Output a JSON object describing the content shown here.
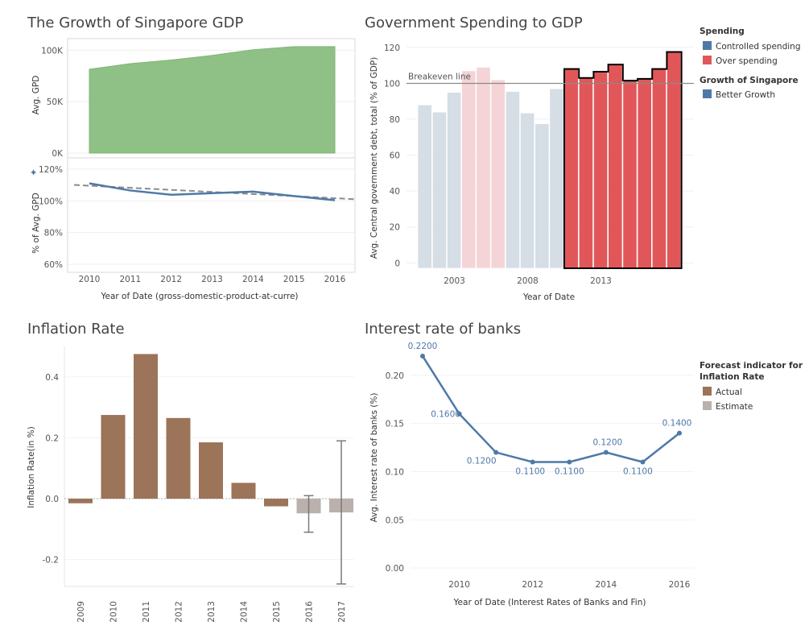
{
  "chart_data": [
    {
      "id": "gdp",
      "type": "area",
      "title": "The Growth of Singapore GDP",
      "x": [
        2010,
        2011,
        2012,
        2013,
        2014,
        2015,
        2016
      ],
      "xlabel": "Year of Date (gross-domestic-product-at-curre)",
      "top_panel": {
        "ylabel": "Avg. GPD",
        "values": [
          81500,
          87000,
          90500,
          95000,
          100500,
          103500,
          103500
        ],
        "ylim": [
          0,
          105000
        ],
        "yticks": [
          0,
          50000,
          100000
        ],
        "ytick_labels": [
          "0K",
          "50K",
          "100K"
        ],
        "color": "#8fc187"
      },
      "bottom_panel": {
        "ylabel": "% of Avg. GPD",
        "values": [
          111,
          106.5,
          103.8,
          104.8,
          105.8,
          103,
          100.4
        ],
        "trend": [
          110,
          101
        ],
        "ylim": [
          58,
          125
        ],
        "yticks": [
          60,
          80,
          100,
          120
        ],
        "ytick_labels": [
          "60%",
          "80%",
          "100%",
          "120%"
        ],
        "color": "#4e79a7"
      }
    },
    {
      "id": "spending",
      "type": "bar",
      "title": "Government Spending to GDP",
      "x": [
        2001,
        2002,
        2003,
        2004,
        2005,
        2006,
        2007,
        2008,
        2009,
        2010,
        2011,
        2012,
        2013,
        2014,
        2015,
        2016,
        2017,
        2018
      ],
      "values": [
        88,
        84,
        95,
        107,
        109,
        102,
        95.5,
        83.5,
        77.5,
        97,
        108,
        103,
        106.5,
        110.5,
        101.5,
        102.5,
        108,
        117.5
      ],
      "highlight": [
        false,
        false,
        false,
        false,
        false,
        false,
        false,
        false,
        false,
        false,
        true,
        true,
        true,
        true,
        true,
        true,
        true,
        true
      ],
      "ylim": [
        -3,
        124
      ],
      "yticks": [
        0,
        20,
        40,
        60,
        80,
        100,
        120
      ],
      "xticks": [
        2003,
        2008,
        2013
      ],
      "xlabel": "Year of Date",
      "ylabel": "Avg. Central government debt, total (% of GDP)",
      "reference_line": {
        "value": 100,
        "label": "Breakeven line"
      },
      "colors": {
        "controlled_faded": "#d5dde5",
        "over_faded": "#f4d4d6",
        "over": "#e15759",
        "outline": "#000000"
      }
    },
    {
      "id": "inflation",
      "type": "bar",
      "title": "Inflation Rate",
      "categories": [
        "2009",
        "2010",
        "2011",
        "2012",
        "2013",
        "2014",
        "2015",
        "2016",
        "2017"
      ],
      "values": [
        -0.015,
        0.275,
        0.475,
        0.265,
        0.185,
        0.052,
        -0.025,
        -0.048,
        -0.045
      ],
      "kind": [
        "Actual",
        "Actual",
        "Actual",
        "Actual",
        "Actual",
        "Actual",
        "Actual",
        "Estimate",
        "Estimate"
      ],
      "error_bars": [
        null,
        null,
        null,
        null,
        null,
        null,
        null,
        [
          -0.11,
          0.01
        ],
        [
          -0.28,
          0.19
        ]
      ],
      "ylim": [
        -0.32,
        0.5
      ],
      "yticks": [
        -0.2,
        0.0,
        0.2,
        0.4
      ],
      "ytick_labels": [
        "-0.2",
        "0.0",
        "0.2",
        "0.4"
      ],
      "ylabel": "Inflation Rate(in %)",
      "colors": {
        "Actual": "#9c7459",
        "Estimate": "#bab0ac"
      }
    },
    {
      "id": "interest",
      "type": "line",
      "title": "Interest rate of banks",
      "x": [
        2009,
        2010,
        2011,
        2012,
        2013,
        2014,
        2015,
        2016
      ],
      "values": [
        0.22,
        0.16,
        0.12,
        0.11,
        0.11,
        0.12,
        0.11,
        0.14
      ],
      "labels": [
        "0.2200",
        "0.1600",
        "0.1200",
        "0.1100",
        "0.1100",
        "0.1200",
        "0.1100",
        "0.1400"
      ],
      "ylim": [
        -0.01,
        0.225
      ],
      "yticks": [
        0.0,
        0.05,
        0.1,
        0.15,
        0.2
      ],
      "ytick_labels": [
        "0.00",
        "0.05",
        "0.10",
        "0.15",
        "0.20"
      ],
      "xticks": [
        2010,
        2012,
        2014,
        2016
      ],
      "xlabel": "Year of Date (Interest Rates of Banks and Fin)",
      "ylabel": "Avg. Interest rate of banks (%)",
      "color": "#4e79a7"
    }
  ],
  "legends": {
    "spending": {
      "title": "Spending",
      "items": [
        {
          "label": "Controlled spending",
          "color": "#4e79a7"
        },
        {
          "label": "Over spending",
          "color": "#e15759"
        }
      ]
    },
    "growth": {
      "title": "Growth of Singapore",
      "items": [
        {
          "label": "Better Growth",
          "color": "#4e79a7"
        }
      ]
    },
    "forecast": {
      "title_line1": "Forecast indicator for",
      "title_line2": "Inflation Rate",
      "items": [
        {
          "label": "Actual",
          "color": "#9c7459"
        },
        {
          "label": "Estimate",
          "color": "#bab0ac"
        }
      ]
    }
  }
}
